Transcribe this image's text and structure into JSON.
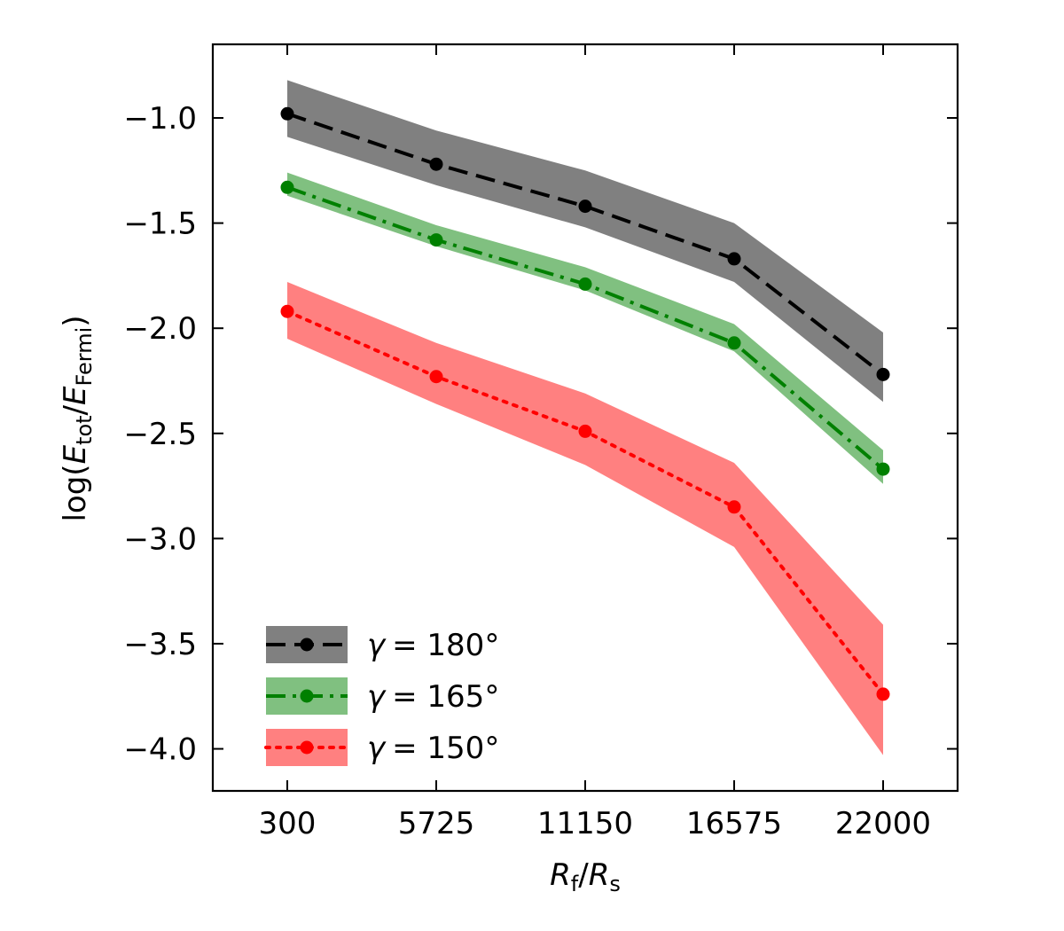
{
  "chart_data": {
    "type": "line",
    "title": "",
    "x": [
      300,
      5725,
      11150,
      16575,
      22000
    ],
    "x_tick_labels": [
      "300",
      "5725",
      "11150",
      "16575",
      "22000"
    ],
    "xlabel": {
      "main": "R",
      "sub": "f",
      "slash": "/",
      "main2": "R",
      "sub2": "s"
    },
    "ylabel": {
      "prefix": "log(",
      "main": "E",
      "sub": "tot",
      "slash": "/",
      "main2": "E",
      "sub2": "Fermi",
      "suffix": ")"
    },
    "xlim": [
      -2412.5,
      24712.5
    ],
    "ylim": [
      -4.2,
      -0.65
    ],
    "y_ticks": [
      -1.0,
      -1.5,
      -2.0,
      -2.5,
      -3.0,
      -3.5,
      -4.0
    ],
    "y_tick_labels": [
      "−1.0",
      "−1.5",
      "−2.0",
      "−2.5",
      "−3.0",
      "−3.5",
      "−4.0"
    ],
    "grid": false,
    "legend_position": "lower-left",
    "series": [
      {
        "name": "γ = 180°",
        "legend_gamma": "γ",
        "legend_value": "= 180°",
        "color": "#000000",
        "band_color": "#808080",
        "line_style": "dashed",
        "values": [
          -0.98,
          -1.22,
          -1.42,
          -1.67,
          -2.22
        ],
        "lower": [
          -1.09,
          -1.32,
          -1.52,
          -1.78,
          -2.35
        ],
        "upper": [
          -0.82,
          -1.06,
          -1.25,
          -1.5,
          -2.02
        ]
      },
      {
        "name": "γ = 165°",
        "legend_gamma": "γ",
        "legend_value": "= 165°",
        "color": "#008000",
        "band_color": "#80c080",
        "line_style": "dashdot",
        "values": [
          -1.33,
          -1.58,
          -1.79,
          -2.07,
          -2.67
        ],
        "lower": [
          -1.37,
          -1.61,
          -1.82,
          -2.11,
          -2.74
        ],
        "upper": [
          -1.26,
          -1.51,
          -1.71,
          -1.98,
          -2.58
        ]
      },
      {
        "name": "γ = 150°",
        "legend_gamma": "γ",
        "legend_value": "= 150°",
        "color": "#ff0000",
        "band_color": "#ff8080",
        "line_style": "dotted",
        "values": [
          -1.92,
          -2.23,
          -2.49,
          -2.85,
          -3.74
        ],
        "lower": [
          -2.05,
          -2.36,
          -2.65,
          -3.04,
          -4.03
        ],
        "upper": [
          -1.78,
          -2.07,
          -2.31,
          -2.64,
          -3.41
        ]
      }
    ]
  }
}
